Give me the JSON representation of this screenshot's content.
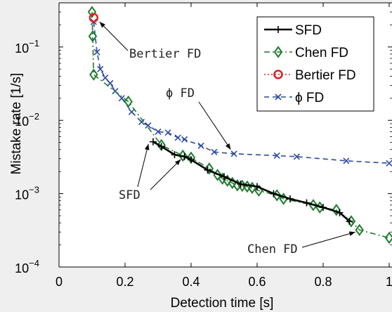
{
  "chart_data": {
    "type": "line",
    "y_scale": "log",
    "xlabel": "Detection time [s]",
    "ylabel": "Mistake rate [1/s]",
    "xlim": [
      0,
      1
    ],
    "ylim": [
      0.0001,
      0.4
    ],
    "grid": false,
    "legend_position": "top-right",
    "x_ticks": [
      {
        "value": 0,
        "label": "0"
      },
      {
        "value": 0.2,
        "label": "0.2"
      },
      {
        "value": 0.4,
        "label": "0.4"
      },
      {
        "value": 0.6,
        "label": "0.6"
      },
      {
        "value": 0.8,
        "label": "0.8"
      },
      {
        "value": 1.0,
        "label": "1"
      }
    ],
    "y_ticks": [
      {
        "value": 0.0001,
        "base": "10",
        "exp": "−4"
      },
      {
        "value": 0.001,
        "base": "10",
        "exp": "−3"
      },
      {
        "value": 0.01,
        "base": "10",
        "exp": "−2"
      },
      {
        "value": 0.1,
        "base": "10",
        "exp": "−1"
      }
    ],
    "series": [
      {
        "name": "SFD",
        "color": "#000000",
        "marker": "plus",
        "dash": "solid",
        "x": [
          0.285,
          0.31,
          0.35,
          0.38,
          0.4,
          0.45,
          0.5,
          0.55,
          0.6,
          0.65,
          0.7,
          0.75,
          0.8,
          0.85,
          0.88
        ],
        "y": [
          0.0051,
          0.0044,
          0.0034,
          0.0032,
          0.0029,
          0.0021,
          0.0017,
          0.00135,
          0.00125,
          0.001,
          0.00085,
          0.00075,
          0.00065,
          0.00055,
          0.00042
        ]
      },
      {
        "name": "Chen FD",
        "color": "#1f7a2e",
        "marker": "diamond",
        "dash": "dash-dot",
        "x": [
          0.1,
          0.102,
          0.105,
          0.21,
          0.31,
          0.375,
          0.4,
          0.455,
          0.48,
          0.495,
          0.51,
          0.525,
          0.54,
          0.555,
          0.57,
          0.585,
          0.605,
          0.66,
          0.68,
          0.77,
          0.79,
          0.84,
          0.885,
          0.91,
          1.0
        ],
        "y": [
          0.3,
          0.14,
          0.042,
          0.018,
          0.0046,
          0.0033,
          0.0031,
          0.0022,
          0.0018,
          0.0016,
          0.0015,
          0.0014,
          0.0013,
          0.00128,
          0.00125,
          0.0012,
          0.0011,
          0.00095,
          0.00085,
          0.0007,
          0.00065,
          0.0006,
          0.00042,
          0.00032,
          0.00025
        ]
      },
      {
        "name": "Bertier FD",
        "color": "#e02020",
        "marker": "circle",
        "dash": "dotted",
        "x": [
          0.105
        ],
        "y": [
          0.25
        ]
      },
      {
        "name": "ϕ FD",
        "color": "#2c4aa0",
        "marker": "x",
        "dash": "dashed",
        "x": [
          0.105,
          0.115,
          0.125,
          0.14,
          0.155,
          0.17,
          0.19,
          0.22,
          0.25,
          0.27,
          0.3,
          0.33,
          0.36,
          0.38,
          0.43,
          0.47,
          0.53,
          0.66,
          0.72,
          0.87,
          1.0
        ],
        "y": [
          0.22,
          0.085,
          0.05,
          0.038,
          0.032,
          0.025,
          0.02,
          0.013,
          0.0095,
          0.0085,
          0.007,
          0.0068,
          0.0058,
          0.0055,
          0.0045,
          0.0037,
          0.0035,
          0.0033,
          0.0032,
          0.0028,
          0.0026
        ]
      }
    ],
    "annotations": [
      {
        "text": "Bertier FD",
        "target": [
          0.11,
          0.24
        ]
      },
      {
        "text": "ϕ FD",
        "target": [
          0.52,
          0.0035
        ]
      },
      {
        "text": "SFD",
        "target_a": [
          0.275,
          0.0052
        ],
        "target_b": [
          0.39,
          0.0032
        ]
      },
      {
        "text": "Chen FD",
        "target": [
          0.91,
          0.00032
        ]
      }
    ]
  }
}
